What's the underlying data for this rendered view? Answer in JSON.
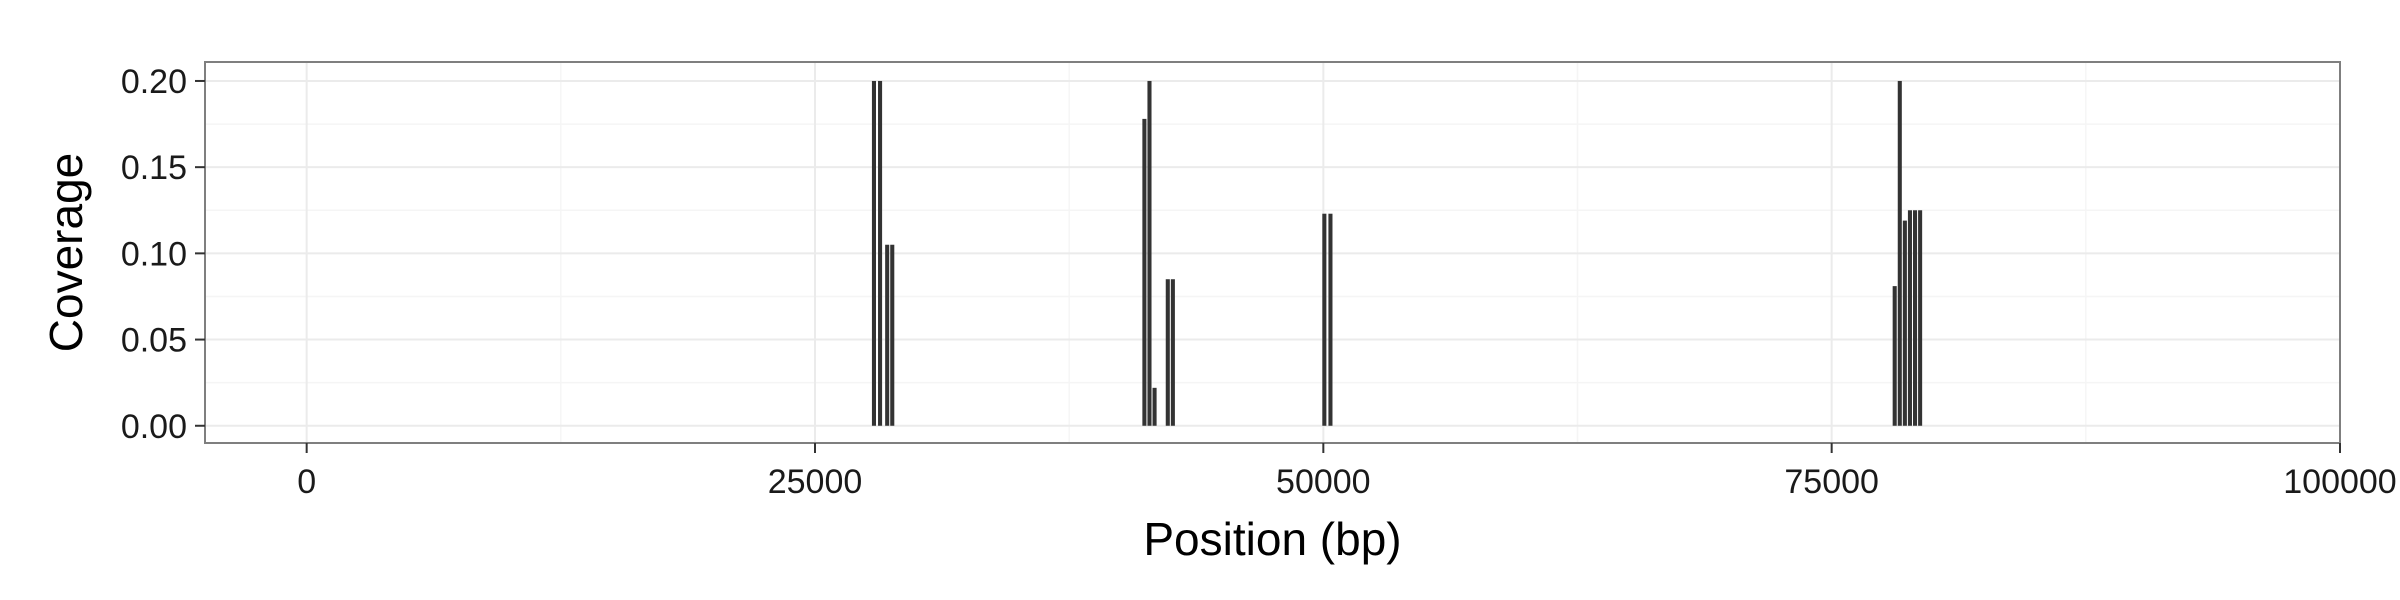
{
  "chart_data": {
    "type": "bar",
    "xlabel": "Position (bp)",
    "ylabel": "Coverage",
    "xlim": [
      -5000,
      100000
    ],
    "ylim": [
      -0.01,
      0.211
    ],
    "x_ticks": [
      0,
      25000,
      50000,
      75000,
      100000
    ],
    "x_tick_labels": [
      "0",
      "25000",
      "50000",
      "75000",
      "100000"
    ],
    "y_ticks": [
      0,
      0.05,
      0.1,
      0.15,
      0.2
    ],
    "y_tick_labels": [
      "0.00",
      "0.05",
      "0.10",
      "0.15",
      "0.20"
    ],
    "grid": true,
    "bar_width": 200,
    "x": [
      27900,
      28200,
      28550,
      28800,
      41200,
      41450,
      41700,
      42350,
      42600,
      50050,
      50350,
      78100,
      78350,
      78600,
      78850,
      79100,
      79350
    ],
    "values": [
      0.2,
      0.2,
      0.105,
      0.105,
      0.178,
      0.2,
      0.022,
      0.085,
      0.085,
      0.123,
      0.123,
      0.081,
      0.2,
      0.119,
      0.125,
      0.125,
      0.125
    ],
    "colors": {
      "bar": "#333333",
      "panel_border": "#7f7f7f",
      "grid_major": "#ebebeb",
      "grid_minor": "#f5f5f5",
      "axis_ticks": "#333333"
    }
  }
}
